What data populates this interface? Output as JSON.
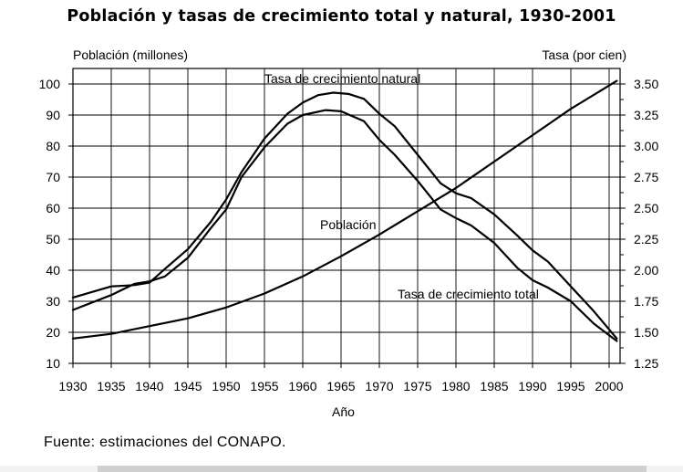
{
  "chart_data": {
    "type": "line",
    "title": "Población y tasas de crecimiento total y natural, 1930-2001",
    "xlabel": "Año",
    "ylabel_left": "Población (millones)",
    "ylabel_right": "Tasa (por cien)",
    "xlim": [
      1930,
      2001
    ],
    "ylim_left": [
      10,
      100
    ],
    "ylim_right": [
      1.25,
      3.5
    ],
    "x_ticks": [
      "1930",
      "1935",
      "1940",
      "1945",
      "1950",
      "1955",
      "1960",
      "1965",
      "1970",
      "1975",
      "1980",
      "1985",
      "1990",
      "1995",
      "2000"
    ],
    "y_left_ticks": [
      "10",
      "20",
      "30",
      "40",
      "50",
      "60",
      "70",
      "80",
      "90",
      "100"
    ],
    "y_right_ticks": [
      "1.25",
      "1.50",
      "1.75",
      "2.00",
      "2.25",
      "2.50",
      "2.75",
      "3.00",
      "3.25",
      "3.50"
    ],
    "grid": true,
    "series": [
      {
        "name": "Población",
        "axis": "left",
        "x": [
          1930,
          1935,
          1940,
          1945,
          1950,
          1955,
          1960,
          1965,
          1970,
          1975,
          1980,
          1985,
          1990,
          1995,
          2001
        ],
        "values": [
          18,
          19.5,
          22,
          24.5,
          28,
          32.5,
          38,
          44.5,
          51.5,
          59,
          66.5,
          75,
          83.5,
          92,
          101
        ]
      },
      {
        "name": "Tasa de crecimiento natural",
        "axis": "right",
        "x": [
          1930,
          1935,
          1938,
          1940,
          1942,
          1945,
          1948,
          1950,
          1952,
          1955,
          1958,
          1960,
          1962,
          1964,
          1966,
          1968,
          1970,
          1972,
          1975,
          1978,
          1980,
          1982,
          1985,
          1988,
          1990,
          1992,
          1995,
          1998,
          2001
        ],
        "values": [
          1.78,
          1.87,
          1.88,
          1.9,
          2.01,
          2.17,
          2.39,
          2.57,
          2.79,
          3.06,
          3.26,
          3.35,
          3.41,
          3.43,
          3.42,
          3.38,
          3.26,
          3.16,
          2.93,
          2.7,
          2.62,
          2.58,
          2.45,
          2.28,
          2.16,
          2.07,
          1.87,
          1.67,
          1.45
        ]
      },
      {
        "name": "Tasa de crecimiento total",
        "axis": "right",
        "x": [
          1930,
          1935,
          1938,
          1940,
          1942,
          1945,
          1948,
          1950,
          1952,
          1955,
          1958,
          1960,
          1963,
          1965,
          1968,
          1970,
          1972,
          1975,
          1978,
          1980,
          1982,
          1985,
          1988,
          1990,
          1992,
          1995,
          1998,
          2001
        ],
        "values": [
          1.68,
          1.8,
          1.89,
          1.91,
          1.95,
          2.1,
          2.34,
          2.49,
          2.75,
          2.99,
          3.18,
          3.25,
          3.29,
          3.28,
          3.2,
          3.05,
          2.93,
          2.72,
          2.49,
          2.42,
          2.36,
          2.22,
          2.02,
          1.92,
          1.86,
          1.75,
          1.57,
          1.43
        ]
      }
    ]
  },
  "annotations": {
    "natural": "Tasa de crecimiento natural",
    "poblacion": "Población",
    "total": "Tasa de crecimiento total"
  },
  "source": "Fuente: estimaciones del CONAPO."
}
